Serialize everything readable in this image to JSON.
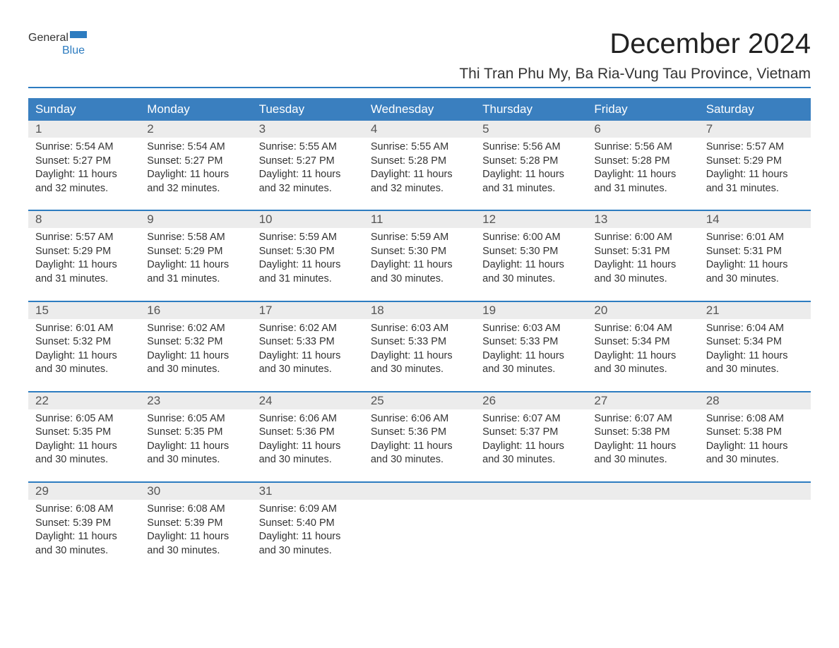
{
  "brand": {
    "part1": "General",
    "part2": "Blue"
  },
  "title": "December 2024",
  "subtitle": "Thi Tran Phu My, Ba Ria-Vung Tau Province, Vietnam",
  "accent_color": "#2d7cc0",
  "header_bg": "#3a7fbf",
  "date_bg": "#ececec",
  "text_color": "#333333",
  "dayHeaders": [
    "Sunday",
    "Monday",
    "Tuesday",
    "Wednesday",
    "Thursday",
    "Friday",
    "Saturday"
  ],
  "weeks": [
    [
      {
        "n": "1",
        "sr": "5:54 AM",
        "ss": "5:27 PM",
        "dl": "11 hours and 32 minutes."
      },
      {
        "n": "2",
        "sr": "5:54 AM",
        "ss": "5:27 PM",
        "dl": "11 hours and 32 minutes."
      },
      {
        "n": "3",
        "sr": "5:55 AM",
        "ss": "5:27 PM",
        "dl": "11 hours and 32 minutes."
      },
      {
        "n": "4",
        "sr": "5:55 AM",
        "ss": "5:28 PM",
        "dl": "11 hours and 32 minutes."
      },
      {
        "n": "5",
        "sr": "5:56 AM",
        "ss": "5:28 PM",
        "dl": "11 hours and 31 minutes."
      },
      {
        "n": "6",
        "sr": "5:56 AM",
        "ss": "5:28 PM",
        "dl": "11 hours and 31 minutes."
      },
      {
        "n": "7",
        "sr": "5:57 AM",
        "ss": "5:29 PM",
        "dl": "11 hours and 31 minutes."
      }
    ],
    [
      {
        "n": "8",
        "sr": "5:57 AM",
        "ss": "5:29 PM",
        "dl": "11 hours and 31 minutes."
      },
      {
        "n": "9",
        "sr": "5:58 AM",
        "ss": "5:29 PM",
        "dl": "11 hours and 31 minutes."
      },
      {
        "n": "10",
        "sr": "5:59 AM",
        "ss": "5:30 PM",
        "dl": "11 hours and 31 minutes."
      },
      {
        "n": "11",
        "sr": "5:59 AM",
        "ss": "5:30 PM",
        "dl": "11 hours and 30 minutes."
      },
      {
        "n": "12",
        "sr": "6:00 AM",
        "ss": "5:30 PM",
        "dl": "11 hours and 30 minutes."
      },
      {
        "n": "13",
        "sr": "6:00 AM",
        "ss": "5:31 PM",
        "dl": "11 hours and 30 minutes."
      },
      {
        "n": "14",
        "sr": "6:01 AM",
        "ss": "5:31 PM",
        "dl": "11 hours and 30 minutes."
      }
    ],
    [
      {
        "n": "15",
        "sr": "6:01 AM",
        "ss": "5:32 PM",
        "dl": "11 hours and 30 minutes."
      },
      {
        "n": "16",
        "sr": "6:02 AM",
        "ss": "5:32 PM",
        "dl": "11 hours and 30 minutes."
      },
      {
        "n": "17",
        "sr": "6:02 AM",
        "ss": "5:33 PM",
        "dl": "11 hours and 30 minutes."
      },
      {
        "n": "18",
        "sr": "6:03 AM",
        "ss": "5:33 PM",
        "dl": "11 hours and 30 minutes."
      },
      {
        "n": "19",
        "sr": "6:03 AM",
        "ss": "5:33 PM",
        "dl": "11 hours and 30 minutes."
      },
      {
        "n": "20",
        "sr": "6:04 AM",
        "ss": "5:34 PM",
        "dl": "11 hours and 30 minutes."
      },
      {
        "n": "21",
        "sr": "6:04 AM",
        "ss": "5:34 PM",
        "dl": "11 hours and 30 minutes."
      }
    ],
    [
      {
        "n": "22",
        "sr": "6:05 AM",
        "ss": "5:35 PM",
        "dl": "11 hours and 30 minutes."
      },
      {
        "n": "23",
        "sr": "6:05 AM",
        "ss": "5:35 PM",
        "dl": "11 hours and 30 minutes."
      },
      {
        "n": "24",
        "sr": "6:06 AM",
        "ss": "5:36 PM",
        "dl": "11 hours and 30 minutes."
      },
      {
        "n": "25",
        "sr": "6:06 AM",
        "ss": "5:36 PM",
        "dl": "11 hours and 30 minutes."
      },
      {
        "n": "26",
        "sr": "6:07 AM",
        "ss": "5:37 PM",
        "dl": "11 hours and 30 minutes."
      },
      {
        "n": "27",
        "sr": "6:07 AM",
        "ss": "5:38 PM",
        "dl": "11 hours and 30 minutes."
      },
      {
        "n": "28",
        "sr": "6:08 AM",
        "ss": "5:38 PM",
        "dl": "11 hours and 30 minutes."
      }
    ],
    [
      {
        "n": "29",
        "sr": "6:08 AM",
        "ss": "5:39 PM",
        "dl": "11 hours and 30 minutes."
      },
      {
        "n": "30",
        "sr": "6:08 AM",
        "ss": "5:39 PM",
        "dl": "11 hours and 30 minutes."
      },
      {
        "n": "31",
        "sr": "6:09 AM",
        "ss": "5:40 PM",
        "dl": "11 hours and 30 minutes."
      },
      null,
      null,
      null,
      null
    ]
  ],
  "labels": {
    "sunrise": "Sunrise:",
    "sunset": "Sunset:",
    "daylight": "Daylight:"
  }
}
